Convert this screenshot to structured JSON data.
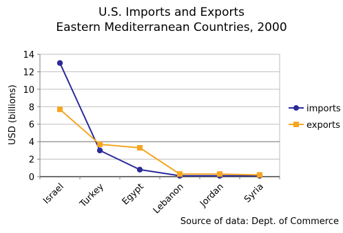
{
  "chart_data": {
    "type": "line",
    "title": "U.S. Imports and Exports",
    "subtitle": "Eastern Mediterranean Countries, 2000",
    "ylabel": "USD (billions)",
    "xlabel": "",
    "ylim": [
      0,
      14
    ],
    "yticks": [
      0,
      2,
      4,
      6,
      8,
      10,
      12,
      14
    ],
    "categories": [
      "Israel",
      "Turkey",
      "Egypt",
      "Lebanon",
      "Jordan",
      "Syria"
    ],
    "series": [
      {
        "name": "imports",
        "color": "#2b2b9a",
        "marker": "circle",
        "values": [
          13.0,
          3.0,
          0.8,
          0.1,
          0.1,
          0.1
        ]
      },
      {
        "name": "exports",
        "color": "#f5a623",
        "marker": "square",
        "values": [
          7.7,
          3.7,
          3.3,
          0.3,
          0.3,
          0.2
        ]
      }
    ],
    "grid": "horizontal",
    "legend_position": "right",
    "source": "Source of data: Dept. of Commerce"
  }
}
